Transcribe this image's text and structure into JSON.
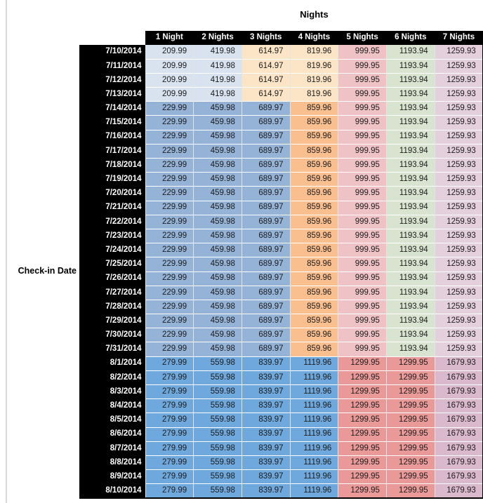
{
  "title": "Nights",
  "row_axis_label": "Check-in Date",
  "columns": [
    "1 Night",
    "2 Nights",
    "3 Nights",
    "4 Nights",
    "5 Nights",
    "6 Nights",
    "7 Nights"
  ],
  "colors": {
    "header_bg": "#000000",
    "header_text": "#ffffff",
    "value_text": "#1c1c1c",
    "window_edge": "#d9d9d9",
    "early_july_blue": "#d9e3f0",
    "early_july_tan": "#fce4c6",
    "mid_july_blue": "#95b3d7",
    "mid_july_orange": "#fabf8f",
    "shared_pink": "#efc2c5",
    "shared_green": "#d8e4d0",
    "shared_lavender": "#e4d0dc",
    "august_blue": "#6fa8dc",
    "august_salmon": "#ea9999",
    "august_mauve": "#dbb9cc"
  },
  "price_groups": {
    "early_july": {
      "values": [
        "209.99",
        "419.98",
        "614.97",
        "819.96",
        "999.95",
        "1193.94",
        "1259.93"
      ],
      "cell_colors": [
        "#d9e3f0",
        "#d9e3f0",
        "#fce4c6",
        "#fce4c6",
        "#efc2c5",
        "#d8e4d0",
        "#e4d0dc"
      ]
    },
    "mid_july": {
      "values": [
        "229.99",
        "459.98",
        "689.97",
        "859.96",
        "999.95",
        "1193.94",
        "1259.93"
      ],
      "cell_colors": [
        "#95b3d7",
        "#95b3d7",
        "#95b3d7",
        "#fabf8f",
        "#efc2c5",
        "#d8e4d0",
        "#e4d0dc"
      ]
    },
    "august": {
      "values": [
        "279.99",
        "559.98",
        "839.97",
        "1119.96",
        "1299.95",
        "1299.95",
        "1679.93"
      ],
      "cell_colors": [
        "#6fa8dc",
        "#6fa8dc",
        "#6fa8dc",
        "#6fa8dc",
        "#ea9999",
        "#ea9999",
        "#dbb9cc"
      ]
    }
  },
  "rows": [
    {
      "date": "7/10/2014",
      "group": "early_july"
    },
    {
      "date": "7/11/2014",
      "group": "early_july"
    },
    {
      "date": "7/12/2014",
      "group": "early_july"
    },
    {
      "date": "7/13/2014",
      "group": "early_july"
    },
    {
      "date": "7/14/2014",
      "group": "mid_july"
    },
    {
      "date": "7/15/2014",
      "group": "mid_july"
    },
    {
      "date": "7/16/2014",
      "group": "mid_july"
    },
    {
      "date": "7/17/2014",
      "group": "mid_july"
    },
    {
      "date": "7/18/2014",
      "group": "mid_july"
    },
    {
      "date": "7/19/2014",
      "group": "mid_july"
    },
    {
      "date": "7/20/2014",
      "group": "mid_july"
    },
    {
      "date": "7/21/2014",
      "group": "mid_july"
    },
    {
      "date": "7/22/2014",
      "group": "mid_july"
    },
    {
      "date": "7/23/2014",
      "group": "mid_july"
    },
    {
      "date": "7/24/2014",
      "group": "mid_july"
    },
    {
      "date": "7/25/2014",
      "group": "mid_july"
    },
    {
      "date": "7/26/2014",
      "group": "mid_july"
    },
    {
      "date": "7/27/2014",
      "group": "mid_july"
    },
    {
      "date": "7/28/2014",
      "group": "mid_july"
    },
    {
      "date": "7/29/2014",
      "group": "mid_july"
    },
    {
      "date": "7/30/2014",
      "group": "mid_july"
    },
    {
      "date": "7/31/2014",
      "group": "mid_july"
    },
    {
      "date": "8/1/2014",
      "group": "august"
    },
    {
      "date": "8/2/2014",
      "group": "august"
    },
    {
      "date": "8/3/2014",
      "group": "august"
    },
    {
      "date": "8/4/2014",
      "group": "august"
    },
    {
      "date": "8/5/2014",
      "group": "august"
    },
    {
      "date": "8/6/2014",
      "group": "august"
    },
    {
      "date": "8/7/2014",
      "group": "august"
    },
    {
      "date": "8/8/2014",
      "group": "august"
    },
    {
      "date": "8/9/2014",
      "group": "august"
    },
    {
      "date": "8/10/2014",
      "group": "august"
    }
  ]
}
